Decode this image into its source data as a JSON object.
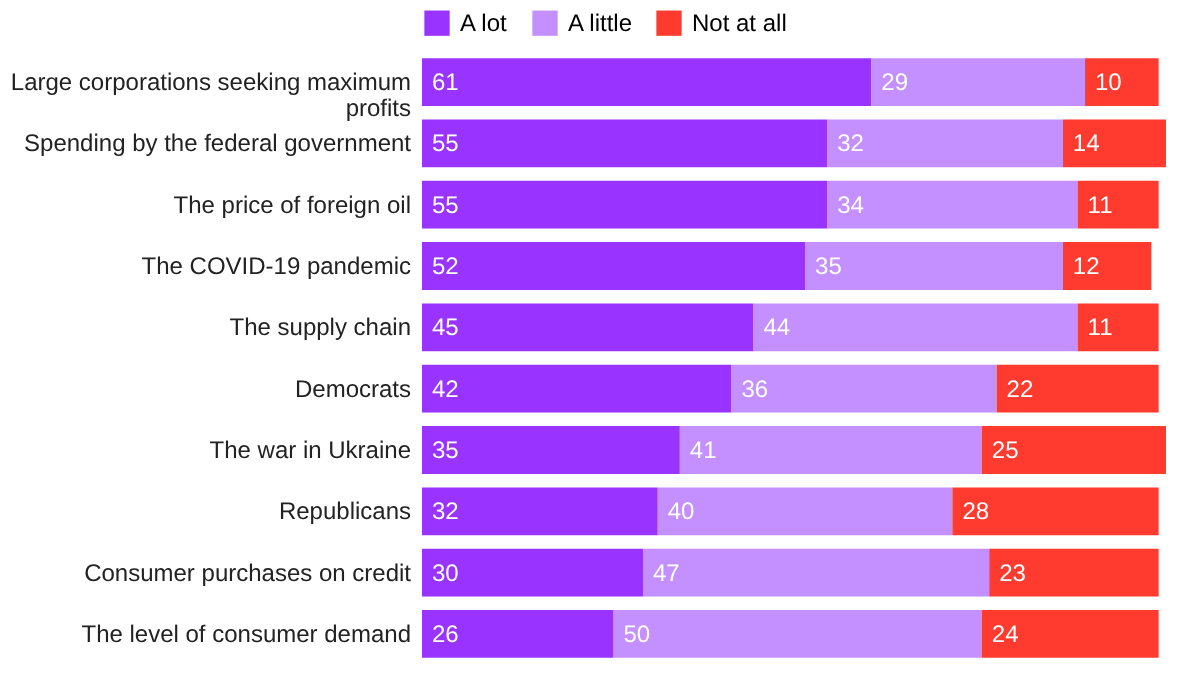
{
  "chart_data": {
    "type": "bar",
    "orientation": "horizontal",
    "stacked": true,
    "data_labels": true,
    "legend": "top",
    "tick_labels": "y",
    "xlim": [
      0,
      101
    ],
    "categories": [
      "Large corporations seeking maximum profits",
      "Spending by the federal government",
      "The price of foreign oil",
      "The COVID-19 pandemic",
      "The supply chain",
      "Democrats",
      "The war in Ukraine",
      "Republicans",
      "Consumer purchases on credit",
      "The level of consumer demand"
    ],
    "series": [
      {
        "name": "A lot",
        "color": "#9933ff",
        "values": [
          61,
          55,
          55,
          52,
          45,
          42,
          35,
          32,
          30,
          26
        ]
      },
      {
        "name": "A little",
        "color": "#c490ff",
        "values": [
          29,
          32,
          34,
          35,
          44,
          36,
          41,
          40,
          47,
          50
        ]
      },
      {
        "name": "Not at all",
        "color": "#ff3b2f",
        "values": [
          10,
          14,
          11,
          12,
          11,
          22,
          25,
          28,
          23,
          24
        ]
      }
    ]
  }
}
